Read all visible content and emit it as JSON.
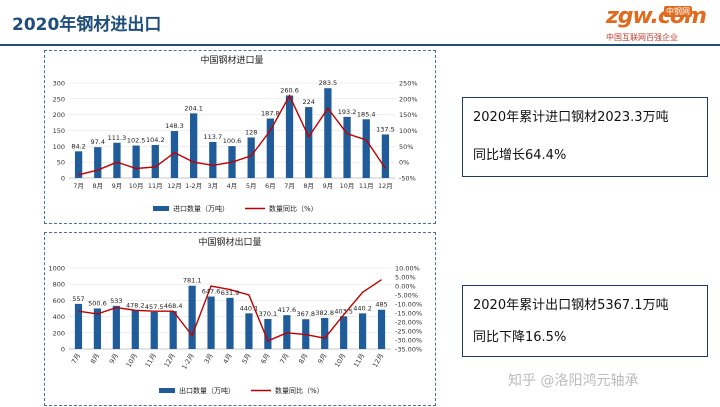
{
  "header": {
    "title": "2020年钢材进出口"
  },
  "logo": {
    "brand": "zgw.com",
    "badge": "中钢网",
    "tagline": "中国互联网百强企业"
  },
  "summary": {
    "import": {
      "line1": "2020年累计进口钢材2023.3万吨",
      "line2": "同比增长64.4%"
    },
    "export": {
      "line1": "2020年累计出口钢材5367.1万吨",
      "line2": "同比下降16.5%"
    }
  },
  "watermark": "知乎 @洛阳鸿元轴承",
  "colors": {
    "bar": "#1f5c99",
    "line": "#c00000",
    "title": "#1f4e79"
  },
  "chart_data": [
    {
      "type": "bar",
      "title": "中国钢材进口量",
      "categories": [
        "7月",
        "8月",
        "9月",
        "10月",
        "11月",
        "12月",
        "1-2月",
        "3月",
        "4月",
        "5月",
        "6月",
        "7月",
        "8月",
        "9月",
        "10月",
        "11月",
        "12月"
      ],
      "series": [
        {
          "name": "进口数量（万吨）",
          "type": "bar",
          "axis": "left",
          "values": [
            84.2,
            97.4,
            111.3,
            102.5,
            104.2,
            148.3,
            204.1,
            113.7,
            100.6,
            128,
            187.8,
            260.6,
            224,
            283.5,
            193.2,
            185.4,
            137.5
          ]
        },
        {
          "name": "数量同比（%）",
          "type": "line",
          "axis": "right",
          "values": [
            -40,
            -25,
            0,
            -20,
            -15,
            30,
            0,
            -10,
            0,
            20,
            100,
            210,
            80,
            170,
            90,
            70,
            -20
          ]
        }
      ],
      "data_labels": [
        "84.2",
        "97.4",
        "111.3",
        "102.5",
        "104.2",
        "148.3",
        "204.1",
        "113.7",
        "100.6",
        "128",
        "187.8",
        "260.6",
        "224",
        "283.5",
        "193.2",
        "185.4",
        "137.5"
      ],
      "y_left": {
        "ticks": [
          "0",
          "50",
          "100",
          "150",
          "200",
          "250",
          "300"
        ],
        "range": [
          0,
          300
        ]
      },
      "y_right": {
        "ticks": [
          "-50%",
          "0%",
          "50%",
          "100%",
          "150%",
          "200%",
          "250%"
        ],
        "range": [
          -50,
          250
        ]
      },
      "legend": {
        "position": "bottom"
      }
    },
    {
      "type": "bar",
      "title": "中国钢材出口量",
      "categories": [
        "7月",
        "8月",
        "9月",
        "10月",
        "11月",
        "12月",
        "1-2月",
        "3月",
        "4月",
        "5月",
        "6月",
        "7月",
        "8月",
        "9月",
        "10月",
        "11月",
        "12月"
      ],
      "series": [
        {
          "name": "出口数量（万吨）",
          "type": "bar",
          "axis": "left",
          "values": [
            557,
            500.6,
            533,
            478.2,
            457.5,
            468.4,
            781.1,
            647.6,
            631.9,
            440.1,
            370.1,
            417.6,
            367.8,
            382.8,
            403.5,
            440.2,
            485
          ]
        },
        {
          "name": "数量同比（%）",
          "type": "line",
          "axis": "right",
          "values": [
            -14,
            -15.5,
            -12,
            -13.5,
            -14,
            -14,
            -27.5,
            0,
            -2,
            -5,
            -30.5,
            -26,
            -27,
            -29,
            -16,
            -3.5,
            3.5
          ]
        }
      ],
      "data_labels": [
        "557",
        "500.6",
        "533",
        "478.2",
        "457.5",
        "468.4",
        "781.1",
        "647.6",
        "631.9",
        "440.1",
        "370.1",
        "417.6",
        "367.8",
        "382.8",
        "403.5",
        "440.2",
        "485"
      ],
      "y_left": {
        "ticks": [
          "0",
          "200",
          "400",
          "600",
          "800",
          "1000"
        ],
        "range": [
          0,
          1000
        ]
      },
      "y_right": {
        "ticks": [
          "-35.00%",
          "-30.00%",
          "-25.00%",
          "-20.00%",
          "-15.00%",
          "-10.00%",
          "-5.00%",
          "0.00%",
          "5.00%",
          "10.00%"
        ],
        "range": [
          -35,
          10
        ]
      },
      "legend": {
        "position": "bottom"
      }
    }
  ]
}
